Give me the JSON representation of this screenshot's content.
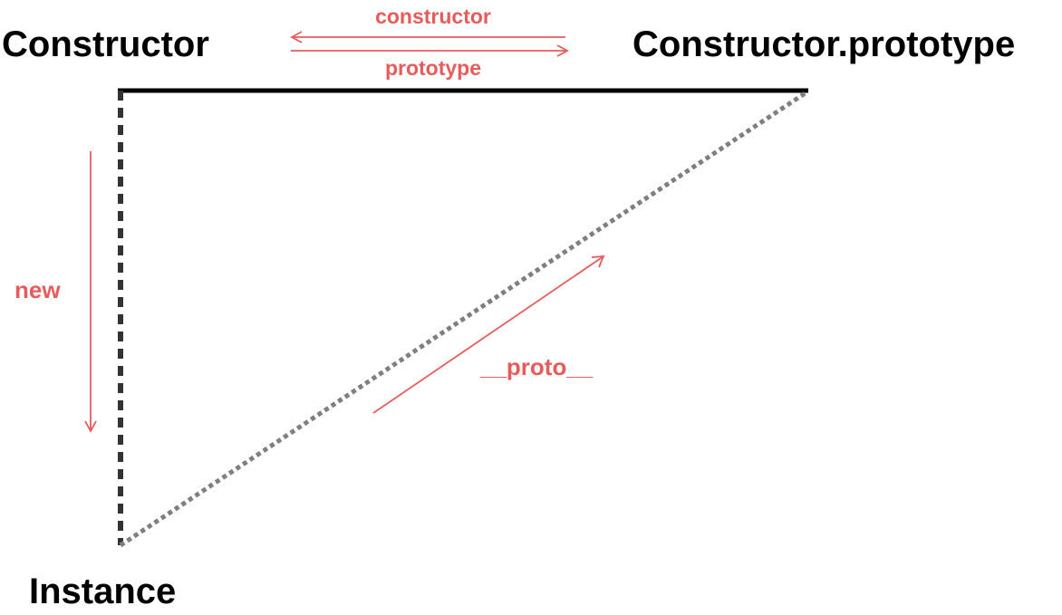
{
  "nodes": {
    "constructor": {
      "label": "Constructor"
    },
    "prototype_object": {
      "label": "Constructor.prototype"
    },
    "instance": {
      "label": "Instance"
    }
  },
  "edges": {
    "constructor_ref": {
      "label": "constructor"
    },
    "prototype_ref": {
      "label": "prototype"
    },
    "new_ref": {
      "label": "new"
    },
    "proto_ref": {
      "label": "__proto__"
    }
  },
  "colors": {
    "accent": "#e65c5c",
    "text": "#000000",
    "solid_edge": "#000000",
    "dashed_edge": "#333333",
    "dotted_edge": "#7f7f7f"
  }
}
